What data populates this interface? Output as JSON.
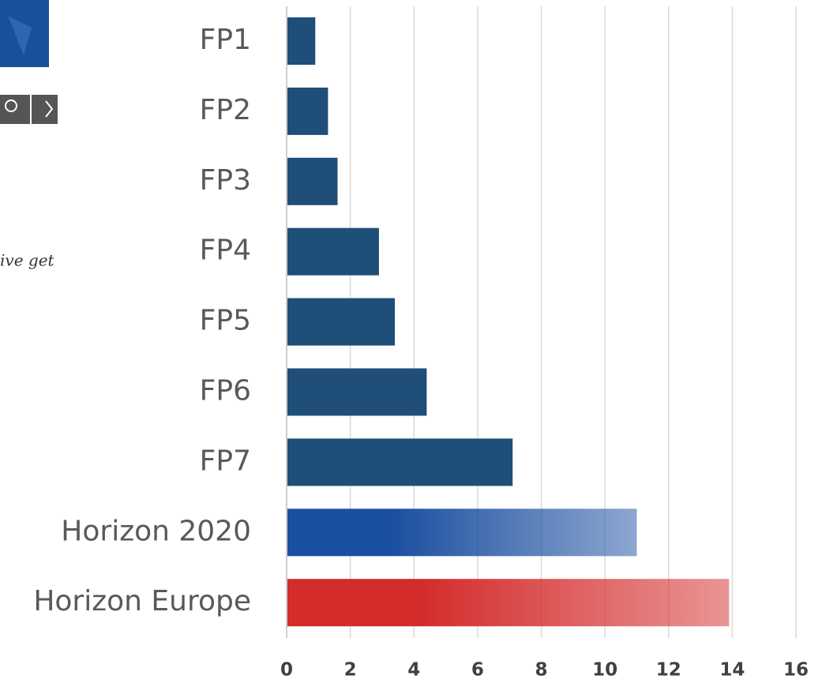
{
  "chart_data": {
    "type": "bar",
    "orientation": "horizontal",
    "categories": [
      "FP1",
      "FP2",
      "FP3",
      "FP4",
      "FP5",
      "FP6",
      "FP7",
      "Horizon 2020",
      "Horizon Europe"
    ],
    "values": [
      0.9,
      1.3,
      1.6,
      2.9,
      3.4,
      4.4,
      7.1,
      11,
      13.9
    ],
    "colors": [
      "#1f4e79",
      "#1f4e79",
      "#1f4e79",
      "#1f4e79",
      "#1f4e79",
      "#1f4e79",
      "#1f4e79",
      "#1b4fa0",
      "#d42b2b"
    ],
    "xlim": [
      0,
      16
    ],
    "xticks": [
      0,
      2,
      4,
      6,
      8,
      10,
      12,
      14,
      16
    ],
    "grid": true
  },
  "sidebar": {
    "text": "ive get"
  }
}
